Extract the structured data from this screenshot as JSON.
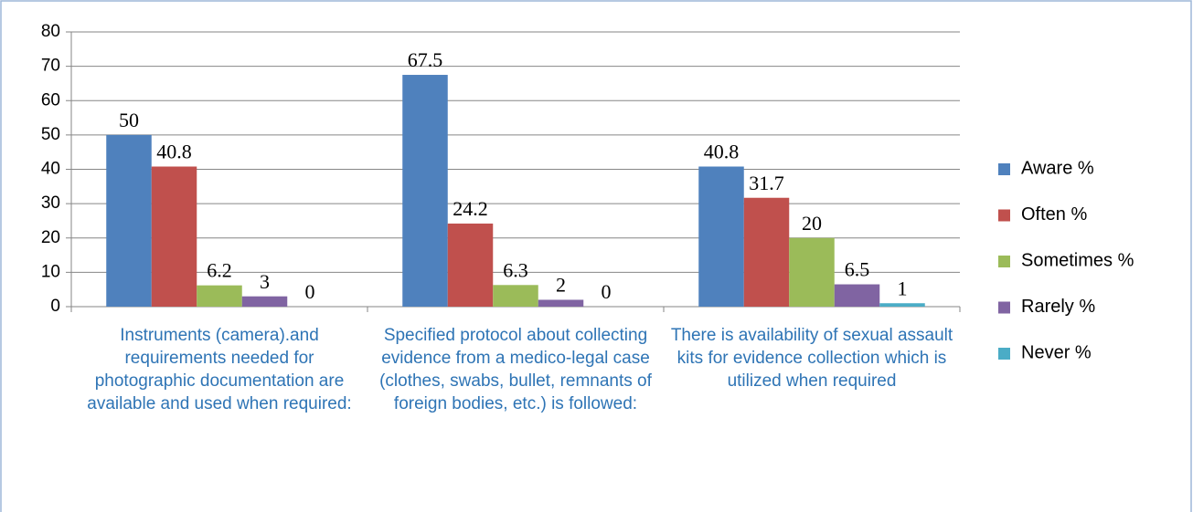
{
  "chart_data": {
    "type": "bar",
    "categories": [
      "Instruments (camera).and requirements needed for photographic documentation are available and  used when required:",
      "Specified protocol about collecting evidence from a medico-legal case (clothes, swabs, bullet, remnants of foreign bodies, etc.) is followed:",
      "There is availability of sexual assault kits for evidence collection  which is utilized when required"
    ],
    "series": [
      {
        "name": "Aware %",
        "color": "#4f81bd",
        "values": [
          50,
          67.5,
          40.8
        ]
      },
      {
        "name": "Often %",
        "color": "#c0504d",
        "values": [
          40.8,
          24.2,
          31.7
        ]
      },
      {
        "name": "Sometimes %",
        "color": "#9bbb59",
        "values": [
          6.2,
          6.3,
          20
        ]
      },
      {
        "name": "Rarely %",
        "color": "#8064a2",
        "values": [
          3,
          2,
          6.5
        ]
      },
      {
        "name": "Never %",
        "color": "#4bacc6",
        "values": [
          0,
          0,
          1
        ]
      }
    ],
    "ylim": [
      0,
      80
    ],
    "yticks": [
      0,
      10,
      20,
      30,
      40,
      50,
      60,
      70,
      80
    ],
    "grid": true,
    "legend": "right"
  }
}
